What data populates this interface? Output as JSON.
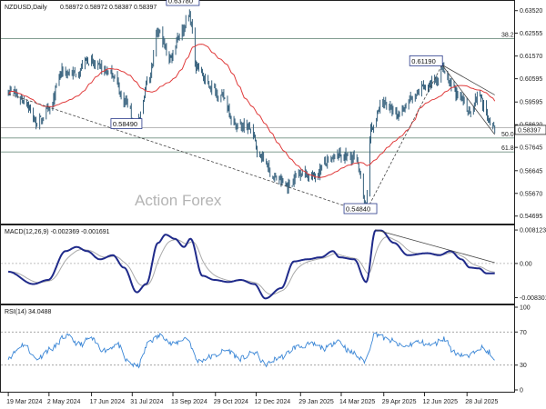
{
  "chart_data": [
    {
      "type": "ohlc",
      "title": "NZDUSD,Daily",
      "ohlc": [
        "0.58972",
        "0.58972",
        "0.58387",
        "0.58397"
      ],
      "watermark": "Action Forex",
      "ylim": [
        0.5445,
        0.6386
      ],
      "y_ticks": [
        "0.63520",
        "0.62555",
        "0.61570",
        "0.60595",
        "0.59595",
        "0.58620",
        "0.57645",
        "0.56645",
        "0.55670",
        "0.54695"
      ],
      "y_tick_values": [
        0.6352,
        0.62555,
        0.6157,
        0.60595,
        0.59595,
        0.5862,
        0.57645,
        0.56645,
        0.5567,
        0.54695
      ],
      "last_price": "0.58397",
      "last_price_value": 0.58397,
      "price_colors": {
        "bars": "#35607c",
        "ma": "#e03b3b",
        "trend": "#444444",
        "level": "#6f8f80"
      },
      "fib_levels": [
        {
          "label": "38.2",
          "value": 0.6232
        },
        {
          "label": "50.0",
          "value": 0.5805
        },
        {
          "label": "61.8",
          "value": 0.5745
        }
      ],
      "annotations": [
        {
          "text": "0.63780",
          "value": 0.6378
        },
        {
          "text": "0.58490",
          "value": 0.5849
        },
        {
          "text": "0.61190",
          "value": 0.6119
        },
        {
          "text": "0.54840",
          "value": 0.5484
        }
      ],
      "x_labels": [
        "19 Mar 2024",
        "2 May 2024",
        "17 Jun 2024",
        "31 Jul 2024",
        "13 Sep 2024",
        "29 Oct 2024",
        "12 Dec 2024",
        "29 Jan 2025",
        "14 Mar 2025",
        "29 Apr 2025",
        "12 Jun 2025",
        "28 Jul 2025"
      ],
      "anchors": [
        [
          "2024-03-19",
          0.601
        ],
        [
          "2024-04-05",
          0.597
        ],
        [
          "2024-04-19",
          0.587
        ],
        [
          "2024-05-02",
          0.592
        ],
        [
          "2024-05-16",
          0.609
        ],
        [
          "2024-06-01",
          0.608
        ],
        [
          "2024-06-12",
          0.614
        ],
        [
          "2024-06-24",
          0.611
        ],
        [
          "2024-07-10",
          0.608
        ],
        [
          "2024-07-22",
          0.597
        ],
        [
          "2024-08-05",
          0.586
        ],
        [
          "2024-08-19",
          0.608
        ],
        [
          "2024-08-28",
          0.626
        ],
        [
          "2024-09-10",
          0.615
        ],
        [
          "2024-09-20",
          0.625
        ],
        [
          "2024-10-01",
          0.633
        ],
        [
          "2024-10-08",
          0.612
        ],
        [
          "2024-10-22",
          0.603
        ],
        [
          "2024-11-06",
          0.598
        ],
        [
          "2024-11-20",
          0.586
        ],
        [
          "2024-12-04",
          0.585
        ],
        [
          "2024-12-18",
          0.572
        ],
        [
          "2025-01-02",
          0.563
        ],
        [
          "2025-01-15",
          0.56
        ],
        [
          "2025-01-29",
          0.566
        ],
        [
          "2025-02-12",
          0.564
        ],
        [
          "2025-02-26",
          0.57
        ],
        [
          "2025-03-12",
          0.573
        ],
        [
          "2025-03-28",
          0.572
        ],
        [
          "2025-04-04",
          0.566
        ],
        [
          "2025-04-09",
          0.55
        ],
        [
          "2025-04-15",
          0.584
        ],
        [
          "2025-04-29",
          0.596
        ],
        [
          "2025-05-13",
          0.59
        ],
        [
          "2025-05-28",
          0.597
        ],
        [
          "2025-06-12",
          0.602
        ],
        [
          "2025-06-26",
          0.606
        ],
        [
          "2025-07-01",
          0.611
        ],
        [
          "2025-07-10",
          0.603
        ],
        [
          "2025-07-22",
          0.597
        ],
        [
          "2025-07-31",
          0.592
        ],
        [
          "2025-08-10",
          0.599
        ],
        [
          "2025-08-20",
          0.589
        ],
        [
          "2025-08-27",
          0.584
        ]
      ],
      "x_range": [
        "2024-03-12",
        "2025-09-15"
      ]
    },
    {
      "type": "line",
      "title": "MACD(12,26,9) -0.002369 -0.001691",
      "ylim": [
        -0.0093,
        0.0088
      ],
      "y_ticks": [
        "0.008123",
        "0.00",
        "-0.008301"
      ],
      "y_tick_values": [
        0.008123,
        0.0,
        -0.008301
      ],
      "colors": {
        "macd": "#1f2a8a",
        "signal": "#aaaaaa",
        "trend": "#444444"
      },
      "macd_anchors": [
        [
          "2024-03-19",
          -0.002
        ],
        [
          "2024-04-15",
          -0.005
        ],
        [
          "2024-05-01",
          -0.004
        ],
        [
          "2024-05-20",
          0.003
        ],
        [
          "2024-06-01",
          0.004
        ],
        [
          "2024-06-12",
          0.003
        ],
        [
          "2024-06-26",
          0.001
        ],
        [
          "2024-07-10",
          0.002
        ],
        [
          "2024-07-22",
          -0.001
        ],
        [
          "2024-08-05",
          -0.007
        ],
        [
          "2024-08-15",
          -0.005
        ],
        [
          "2024-08-28",
          0.005
        ],
        [
          "2024-09-05",
          0.007
        ],
        [
          "2024-09-15",
          0.006
        ],
        [
          "2024-09-25",
          0.004
        ],
        [
          "2024-10-02",
          0.006
        ],
        [
          "2024-10-15",
          -0.003
        ],
        [
          "2024-10-28",
          -0.004
        ],
        [
          "2024-11-12",
          -0.0045
        ],
        [
          "2024-11-25",
          -0.004
        ],
        [
          "2024-12-10",
          -0.005
        ],
        [
          "2024-12-22",
          -0.0085
        ],
        [
          "2025-01-08",
          -0.006
        ],
        [
          "2025-01-22",
          0.0005
        ],
        [
          "2025-02-05",
          0.001
        ],
        [
          "2025-02-20",
          0.0015
        ],
        [
          "2025-03-05",
          0.003
        ],
        [
          "2025-03-12",
          0.0015
        ],
        [
          "2025-03-28",
          0.001
        ],
        [
          "2025-04-10",
          -0.0045
        ],
        [
          "2025-04-20",
          0.008
        ],
        [
          "2025-04-26",
          0.008
        ],
        [
          "2025-05-10",
          0.005
        ],
        [
          "2025-05-25",
          0.002
        ],
        [
          "2025-06-15",
          0.0025
        ],
        [
          "2025-06-28",
          0.002
        ],
        [
          "2025-07-10",
          0.003
        ],
        [
          "2025-07-22",
          0.001
        ],
        [
          "2025-07-31",
          -0.001
        ],
        [
          "2025-08-10",
          -0.0012
        ],
        [
          "2025-08-18",
          -0.0024
        ],
        [
          "2025-08-27",
          -0.0024
        ]
      ]
    },
    {
      "type": "line",
      "title": "RSI(14) 34.0488",
      "ylim": [
        0,
        100
      ],
      "y_ticks": [
        "100",
        "70",
        "30",
        "0"
      ],
      "y_tick_values": [
        100,
        70,
        30,
        0
      ],
      "colors": {
        "rsi": "#3a86d6",
        "level": "#999999"
      },
      "rsi_anchors": [
        [
          "2024-03-19",
          40
        ],
        [
          "2024-04-05",
          55
        ],
        [
          "2024-04-18",
          38
        ],
        [
          "2024-05-05",
          50
        ],
        [
          "2024-05-20",
          65
        ],
        [
          "2024-06-05",
          55
        ],
        [
          "2024-06-15",
          62
        ],
        [
          "2024-07-01",
          48
        ],
        [
          "2024-07-15",
          55
        ],
        [
          "2024-07-25",
          35
        ],
        [
          "2024-08-05",
          28
        ],
        [
          "2024-08-20",
          60
        ],
        [
          "2024-09-01",
          66
        ],
        [
          "2024-09-12",
          55
        ],
        [
          "2024-09-28",
          63
        ],
        [
          "2024-10-10",
          35
        ],
        [
          "2024-10-25",
          40
        ],
        [
          "2024-11-10",
          48
        ],
        [
          "2024-11-25",
          38
        ],
        [
          "2024-12-10",
          45
        ],
        [
          "2024-12-22",
          31
        ],
        [
          "2025-01-08",
          40
        ],
        [
          "2025-01-25",
          52
        ],
        [
          "2025-02-10",
          55
        ],
        [
          "2025-02-25",
          50
        ],
        [
          "2025-03-10",
          60
        ],
        [
          "2025-03-25",
          45
        ],
        [
          "2025-04-08",
          35
        ],
        [
          "2025-04-20",
          68
        ],
        [
          "2025-05-05",
          60
        ],
        [
          "2025-05-20",
          52
        ],
        [
          "2025-06-05",
          58
        ],
        [
          "2025-06-20",
          54
        ],
        [
          "2025-07-03",
          62
        ],
        [
          "2025-07-15",
          45
        ],
        [
          "2025-07-30",
          40
        ],
        [
          "2025-08-10",
          52
        ],
        [
          "2025-08-20",
          46
        ],
        [
          "2025-08-27",
          34
        ]
      ]
    }
  ]
}
